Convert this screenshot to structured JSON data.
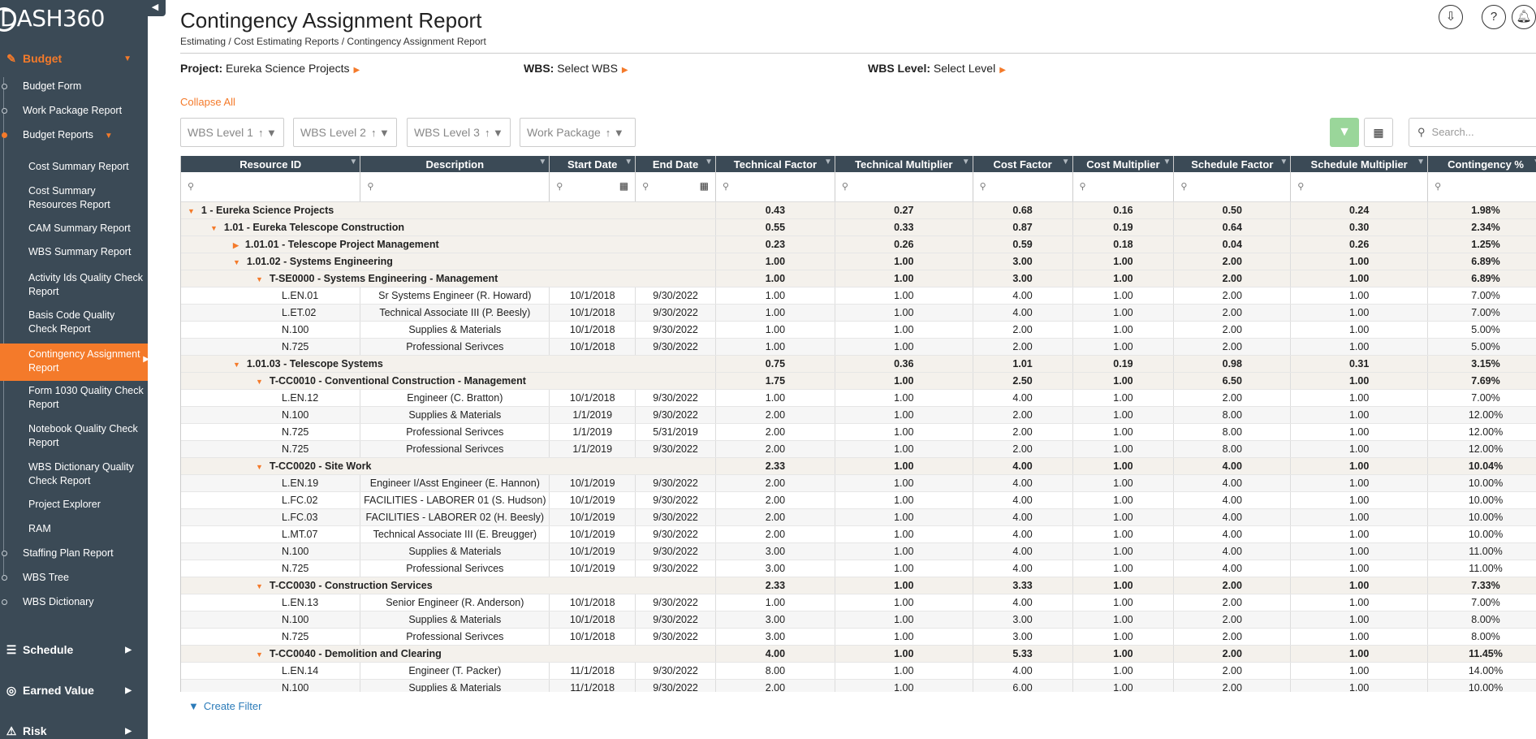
{
  "app": {
    "logo_text": "DASH360"
  },
  "sidebar": {
    "budget_label": "Budget",
    "items": [
      {
        "label": "Budget Form"
      },
      {
        "label": "Work Package Report"
      },
      {
        "label": "Budget Reports"
      }
    ],
    "reports": [
      {
        "label": "Cost Summary Report"
      },
      {
        "label": "Cost Summary Resources Report"
      },
      {
        "label": "CAM Summary Report"
      },
      {
        "label": "WBS Summary Report"
      },
      {
        "label": "Activity Ids Quality Check Report"
      },
      {
        "label": "Basis Code Quality Check Report"
      },
      {
        "label": "Contingency Assignment Report"
      },
      {
        "label": "Form 1030 Quality Check Report"
      },
      {
        "label": "Notebook Quality Check Report"
      },
      {
        "label": "WBS Dictionary Quality Check Report"
      },
      {
        "label": "Project Explorer"
      },
      {
        "label": "RAM"
      }
    ],
    "after": [
      {
        "label": "Staffing Plan Report"
      },
      {
        "label": "WBS Tree"
      },
      {
        "label": "WBS Dictionary"
      }
    ],
    "sections": {
      "schedule": "Schedule",
      "earned_value": "Earned Value",
      "risk": "Risk"
    }
  },
  "header": {
    "title": "Contingency Assignment Report",
    "breadcrumb": "Estimating / Cost Estimating Reports / Contingency Assignment Report"
  },
  "selectors": {
    "project_label": "Project:",
    "project_value": "Eureka Science Projects",
    "wbs_label": "WBS:",
    "wbs_value": "Select WBS",
    "level_label": "WBS Level:",
    "level_value": "Select Level"
  },
  "collapse_all": "Collapse All",
  "group_chips": [
    "WBS Level 1",
    "WBS Level 2",
    "WBS Level 3",
    "Work Package"
  ],
  "search": {
    "placeholder": "Search..."
  },
  "columns": [
    "Resource ID",
    "Description",
    "Start Date",
    "End Date",
    "Technical Factor",
    "Technical Multiplier",
    "Cost Factor",
    "Cost Multiplier",
    "Schedule Factor",
    "Schedule Multiplier",
    "Contingency %"
  ],
  "rows": [
    {
      "type": "group",
      "level": 0,
      "title": "1 - Eureka Science Projects",
      "toggle": "down",
      "v": [
        "0.43",
        "0.27",
        "0.68",
        "0.16",
        "0.50",
        "0.24",
        "1.98%"
      ]
    },
    {
      "type": "group",
      "level": 1,
      "title": "1.01 - Eureka Telescope Construction",
      "toggle": "down",
      "v": [
        "0.55",
        "0.33",
        "0.87",
        "0.19",
        "0.64",
        "0.30",
        "2.34%"
      ]
    },
    {
      "type": "group",
      "level": 2,
      "title": "1.01.01 - Telescope Project Management",
      "toggle": "right",
      "v": [
        "0.23",
        "0.26",
        "0.59",
        "0.18",
        "0.04",
        "0.26",
        "1.25%"
      ]
    },
    {
      "type": "group",
      "level": 2,
      "title": "1.01.02 - Systems Engineering",
      "toggle": "down",
      "v": [
        "1.00",
        "1.00",
        "3.00",
        "1.00",
        "2.00",
        "1.00",
        "6.89%"
      ]
    },
    {
      "type": "group",
      "level": 3,
      "title": "T-SE0000 - Systems Engineering - Management",
      "toggle": "down",
      "v": [
        "1.00",
        "1.00",
        "3.00",
        "1.00",
        "2.00",
        "1.00",
        "6.89%"
      ]
    },
    {
      "type": "leaf",
      "rid": "L.EN.01",
      "desc": "Sr Systems Engineer (R. Howard)",
      "start": "10/1/2018",
      "end": "9/30/2022",
      "v": [
        "1.00",
        "1.00",
        "4.00",
        "1.00",
        "2.00",
        "1.00",
        "7.00%"
      ]
    },
    {
      "type": "leaf",
      "rid": "L.ET.02",
      "desc": "Technical Associate III (P. Beesly)",
      "start": "10/1/2018",
      "end": "9/30/2022",
      "v": [
        "1.00",
        "1.00",
        "4.00",
        "1.00",
        "2.00",
        "1.00",
        "7.00%"
      ]
    },
    {
      "type": "leaf",
      "rid": "N.100",
      "desc": "Supplies & Materials",
      "start": "10/1/2018",
      "end": "9/30/2022",
      "v": [
        "1.00",
        "1.00",
        "2.00",
        "1.00",
        "2.00",
        "1.00",
        "5.00%"
      ]
    },
    {
      "type": "leaf",
      "rid": "N.725",
      "desc": "Professional Serivces",
      "start": "10/1/2018",
      "end": "9/30/2022",
      "v": [
        "1.00",
        "1.00",
        "2.00",
        "1.00",
        "2.00",
        "1.00",
        "5.00%"
      ]
    },
    {
      "type": "group",
      "level": 2,
      "title": "1.01.03 - Telescope Systems",
      "toggle": "down",
      "v": [
        "0.75",
        "0.36",
        "1.01",
        "0.19",
        "0.98",
        "0.31",
        "3.15%"
      ]
    },
    {
      "type": "group",
      "level": 3,
      "title": "T-CC0010 - Conventional Construction - Management",
      "toggle": "down",
      "v": [
        "1.75",
        "1.00",
        "2.50",
        "1.00",
        "6.50",
        "1.00",
        "7.69%"
      ]
    },
    {
      "type": "leaf",
      "rid": "L.EN.12",
      "desc": "Engineer (C. Bratton)",
      "start": "10/1/2018",
      "end": "9/30/2022",
      "v": [
        "1.00",
        "1.00",
        "4.00",
        "1.00",
        "2.00",
        "1.00",
        "7.00%"
      ]
    },
    {
      "type": "leaf",
      "rid": "N.100",
      "desc": "Supplies & Materials",
      "start": "1/1/2019",
      "end": "9/30/2022",
      "v": [
        "2.00",
        "1.00",
        "2.00",
        "1.00",
        "8.00",
        "1.00",
        "12.00%"
      ]
    },
    {
      "type": "leaf",
      "rid": "N.725",
      "desc": "Professional Serivces",
      "start": "1/1/2019",
      "end": "5/31/2019",
      "v": [
        "2.00",
        "1.00",
        "2.00",
        "1.00",
        "8.00",
        "1.00",
        "12.00%"
      ]
    },
    {
      "type": "leaf",
      "rid": "N.725",
      "desc": "Professional Serivces",
      "start": "1/1/2019",
      "end": "9/30/2022",
      "v": [
        "2.00",
        "1.00",
        "2.00",
        "1.00",
        "8.00",
        "1.00",
        "12.00%"
      ]
    },
    {
      "type": "group",
      "level": 3,
      "title": "T-CC0020 - Site Work",
      "toggle": "down",
      "v": [
        "2.33",
        "1.00",
        "4.00",
        "1.00",
        "4.00",
        "1.00",
        "10.04%"
      ]
    },
    {
      "type": "leaf",
      "rid": "L.EN.19",
      "desc": "Engineer I/Asst Engineer (E. Hannon)",
      "start": "10/1/2019",
      "end": "9/30/2022",
      "v": [
        "2.00",
        "1.00",
        "4.00",
        "1.00",
        "4.00",
        "1.00",
        "10.00%"
      ]
    },
    {
      "type": "leaf",
      "rid": "L.FC.02",
      "desc": "FACILITIES - LABORER 01 (S. Hudson)",
      "start": "10/1/2019",
      "end": "9/30/2022",
      "v": [
        "2.00",
        "1.00",
        "4.00",
        "1.00",
        "4.00",
        "1.00",
        "10.00%"
      ]
    },
    {
      "type": "leaf",
      "rid": "L.FC.03",
      "desc": "FACILITIES - LABORER 02 (H. Beesly)",
      "start": "10/1/2019",
      "end": "9/30/2022",
      "v": [
        "2.00",
        "1.00",
        "4.00",
        "1.00",
        "4.00",
        "1.00",
        "10.00%"
      ]
    },
    {
      "type": "leaf",
      "rid": "L.MT.07",
      "desc": "Technical Associate III (E. Breugger)",
      "start": "10/1/2019",
      "end": "9/30/2022",
      "v": [
        "2.00",
        "1.00",
        "4.00",
        "1.00",
        "4.00",
        "1.00",
        "10.00%"
      ]
    },
    {
      "type": "leaf",
      "rid": "N.100",
      "desc": "Supplies & Materials",
      "start": "10/1/2019",
      "end": "9/30/2022",
      "v": [
        "3.00",
        "1.00",
        "4.00",
        "1.00",
        "4.00",
        "1.00",
        "11.00%"
      ]
    },
    {
      "type": "leaf",
      "rid": "N.725",
      "desc": "Professional Serivces",
      "start": "10/1/2019",
      "end": "9/30/2022",
      "v": [
        "3.00",
        "1.00",
        "4.00",
        "1.00",
        "4.00",
        "1.00",
        "11.00%"
      ]
    },
    {
      "type": "group",
      "level": 3,
      "title": "T-CC0030 - Construction Services",
      "toggle": "down",
      "v": [
        "2.33",
        "1.00",
        "3.33",
        "1.00",
        "2.00",
        "1.00",
        "7.33%"
      ]
    },
    {
      "type": "leaf",
      "rid": "L.EN.13",
      "desc": "Senior Engineer (R. Anderson)",
      "start": "10/1/2018",
      "end": "9/30/2022",
      "v": [
        "1.00",
        "1.00",
        "4.00",
        "1.00",
        "2.00",
        "1.00",
        "7.00%"
      ]
    },
    {
      "type": "leaf",
      "rid": "N.100",
      "desc": "Supplies & Materials",
      "start": "10/1/2018",
      "end": "9/30/2022",
      "v": [
        "3.00",
        "1.00",
        "3.00",
        "1.00",
        "2.00",
        "1.00",
        "8.00%"
      ]
    },
    {
      "type": "leaf",
      "rid": "N.725",
      "desc": "Professional Serivces",
      "start": "10/1/2018",
      "end": "9/30/2022",
      "v": [
        "3.00",
        "1.00",
        "3.00",
        "1.00",
        "2.00",
        "1.00",
        "8.00%"
      ]
    },
    {
      "type": "group",
      "level": 3,
      "title": "T-CC0040 - Demolition and Clearing",
      "toggle": "down",
      "v": [
        "4.00",
        "1.00",
        "5.33",
        "1.00",
        "2.00",
        "1.00",
        "11.45%"
      ]
    },
    {
      "type": "leaf",
      "rid": "L.EN.14",
      "desc": "Engineer (T. Packer)",
      "start": "11/1/2018",
      "end": "9/30/2022",
      "v": [
        "8.00",
        "1.00",
        "4.00",
        "1.00",
        "2.00",
        "1.00",
        "14.00%"
      ]
    },
    {
      "type": "leaf",
      "rid": "N.100",
      "desc": "Supplies & Materials",
      "start": "11/1/2018",
      "end": "9/30/2022",
      "v": [
        "2.00",
        "1.00",
        "6.00",
        "1.00",
        "2.00",
        "1.00",
        "10.00%"
      ]
    }
  ],
  "create_filter": "Create Filter",
  "colors": {
    "sidebar": "#3b4a56",
    "accent": "#f47a2a",
    "filter_active": "#9ad69a",
    "link": "#2b7bb9"
  }
}
